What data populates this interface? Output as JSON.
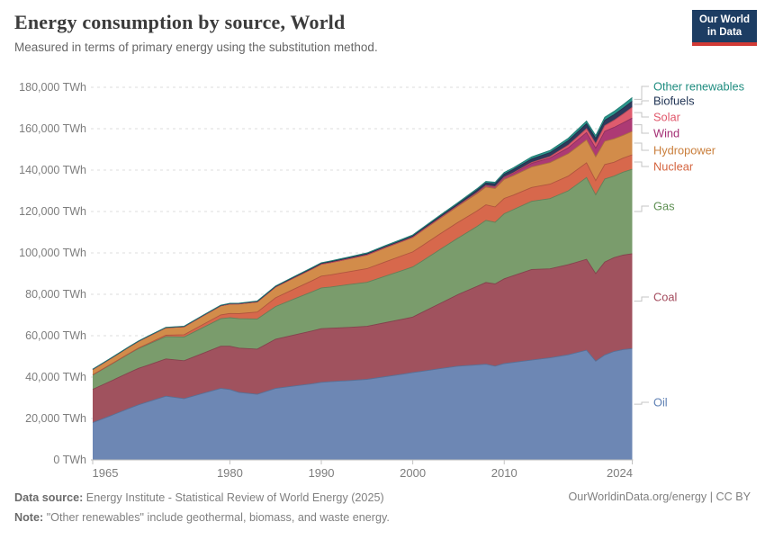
{
  "header": {
    "title": "Energy consumption by source, World",
    "subtitle": "Measured in terms of primary energy using the substitution method.",
    "logo": {
      "line1": "Our World",
      "line2": "in Data",
      "bg_color": "#1d3d63",
      "bar_color": "#d23a35"
    }
  },
  "footer": {
    "source_label": "Data source:",
    "source_text": "Energy Institute - Statistical Review of World Energy (2025)",
    "note_label": "Note:",
    "note_text": "\"Other renewables\" include geothermal, biomass, and waste energy.",
    "link_text": "OurWorldinData.org/energy | CC BY"
  },
  "chart_data": {
    "type": "area",
    "stacked": true,
    "title": "Energy consumption by source, World",
    "subtitle": "Measured in terms of primary energy using the substitution method.",
    "unit": "TWh",
    "grid": true,
    "legend_position": "right",
    "xlim": [
      1965,
      2024
    ],
    "ylim": [
      0,
      180000
    ],
    "x_ticks": [
      {
        "v": 1965,
        "label": "1965"
      },
      {
        "v": 1980,
        "label": "1980"
      },
      {
        "v": 1990,
        "label": "1990"
      },
      {
        "v": 2000,
        "label": "2000"
      },
      {
        "v": 2010,
        "label": "2010"
      },
      {
        "v": 2024,
        "label": "2024"
      }
    ],
    "y_ticks": [
      {
        "v": 0,
        "label": "0 TWh"
      },
      {
        "v": 20000,
        "label": "20,000 TWh"
      },
      {
        "v": 40000,
        "label": "40,000 TWh"
      },
      {
        "v": 60000,
        "label": "60,000 TWh"
      },
      {
        "v": 80000,
        "label": "80,000 TWh"
      },
      {
        "v": 100000,
        "label": "100,000 TWh"
      },
      {
        "v": 120000,
        "label": "120,000 TWh"
      },
      {
        "v": 140000,
        "label": "140,000 TWh"
      },
      {
        "v": 160000,
        "label": "160,000 TWh"
      },
      {
        "v": 180000,
        "label": "180,000 TWh"
      }
    ],
    "x": [
      1965,
      1967,
      1969,
      1970,
      1971,
      1973,
      1975,
      1977,
      1979,
      1980,
      1981,
      1983,
      1985,
      1987,
      1989,
      1990,
      1991,
      1993,
      1995,
      1997,
      1999,
      2000,
      2001,
      2003,
      2005,
      2007,
      2008,
      2009,
      2010,
      2011,
      2013,
      2015,
      2017,
      2019,
      2020,
      2021,
      2022,
      2023,
      2024
    ],
    "series": [
      {
        "name": "Oil",
        "fill": "#6d87b4",
        "label_color": "#5e80b4",
        "legend_y": 447,
        "values": [
          18000,
          21400,
          24900,
          26600,
          28000,
          30800,
          29600,
          32100,
          34500,
          34000,
          32600,
          31700,
          34500,
          35700,
          36800,
          37500,
          37800,
          38300,
          38900,
          40200,
          41500,
          42200,
          42800,
          44100,
          45300,
          45900,
          46200,
          45300,
          46500,
          47100,
          48200,
          49300,
          50800,
          53000,
          47700,
          50700,
          52400,
          53300,
          53800
        ]
      },
      {
        "name": "Coal",
        "fill": "#a0525e",
        "label_color": "#a34a5c",
        "legend_y": 330,
        "values": [
          16100,
          16700,
          17300,
          17600,
          17700,
          18000,
          18300,
          19300,
          20400,
          20900,
          21400,
          21800,
          23800,
          24600,
          25500,
          25900,
          25800,
          25700,
          25600,
          26100,
          26600,
          26800,
          28400,
          31500,
          34700,
          37900,
          39500,
          39700,
          41000,
          41900,
          43800,
          43000,
          43500,
          43900,
          42300,
          44900,
          45300,
          45600,
          45800
        ]
      },
      {
        "name": "Gas",
        "fill": "#7a9c6c",
        "label_color": "#5d8f52",
        "legend_y": 229,
        "values": [
          6900,
          8000,
          9100,
          9600,
          10000,
          10700,
          11500,
          12400,
          13300,
          13800,
          14200,
          14600,
          15800,
          17400,
          18900,
          19700,
          19900,
          20700,
          21300,
          22500,
          23600,
          24200,
          24800,
          26100,
          27300,
          28900,
          30000,
          29800,
          31400,
          31900,
          32900,
          33900,
          35700,
          39500,
          38100,
          40100,
          39400,
          40100,
          40800
        ]
      },
      {
        "name": "Nuclear",
        "fill": "#d7684c",
        "label_color": "#d4643f",
        "legend_y": 185,
        "values": [
          70,
          130,
          190,
          220,
          390,
          730,
          1060,
          1440,
          1830,
          2020,
          2460,
          3330,
          4200,
          4800,
          5400,
          5700,
          5900,
          6200,
          6600,
          6900,
          7200,
          7300,
          7400,
          7500,
          7600,
          7500,
          7500,
          7400,
          7400,
          7000,
          6700,
          7000,
          7100,
          7100,
          6800,
          7000,
          6700,
          6800,
          7000
        ]
      },
      {
        "name": "Hydropower",
        "fill": "#d28c4a",
        "label_color": "#c97e3b",
        "legend_y": 167,
        "values": [
          2600,
          2800,
          3100,
          3200,
          3400,
          3600,
          3900,
          4200,
          4400,
          4600,
          4700,
          4900,
          5200,
          5400,
          5600,
          5700,
          5900,
          6200,
          6600,
          6800,
          6900,
          7000,
          7200,
          7500,
          7800,
          8300,
          8600,
          8900,
          9200,
          9400,
          9900,
          10400,
          10800,
          11100,
          11500,
          11200,
          11300,
          11000,
          11300
        ]
      },
      {
        "name": "Wind",
        "fill": "#ad3a74",
        "label_color": "#a42e74",
        "legend_y": 148,
        "values": [
          0,
          0,
          0,
          0,
          0,
          0,
          0,
          0,
          0,
          0,
          0,
          0,
          0,
          0,
          10,
          10,
          10,
          20,
          20,
          50,
          70,
          80,
          120,
          200,
          280,
          540,
          660,
          790,
          920,
          1180,
          1710,
          2240,
          2890,
          3540,
          4190,
          4870,
          5490,
          6040,
          6450
        ]
      },
      {
        "name": "Solar",
        "fill": "#df5c6e",
        "label_color": "#e0566a",
        "legend_y": 130,
        "values": [
          0,
          0,
          0,
          0,
          0,
          0,
          0,
          0,
          0,
          0,
          0,
          0,
          0,
          0,
          0,
          0,
          0,
          0,
          0,
          0,
          0,
          0,
          0,
          10,
          10,
          40,
          60,
          70,
          90,
          210,
          440,
          680,
          1260,
          1840,
          2200,
          2700,
          3450,
          4260,
          5210
        ]
      },
      {
        "name": "Biofuels",
        "fill": "#2d3a5c",
        "label_color": "#1d3152",
        "legend_y": 112,
        "values": [
          100,
          110,
          120,
          120,
          120,
          130,
          130,
          160,
          190,
          200,
          220,
          250,
          280,
          320,
          370,
          390,
          410,
          440,
          480,
          510,
          540,
          560,
          630,
          760,
          900,
          1160,
          1280,
          1410,
          1540,
          1610,
          1760,
          1900,
          2150,
          2390,
          2500,
          2600,
          2700,
          2800,
          2900
        ]
      },
      {
        "name": "Other renewables",
        "fill": "#2a968c",
        "label_color": "#1e8c7f",
        "legend_y": 96,
        "values": [
          60,
          70,
          90,
          90,
          90,
          100,
          110,
          130,
          140,
          150,
          170,
          210,
          250,
          300,
          360,
          380,
          400,
          440,
          480,
          510,
          540,
          560,
          580,
          610,
          650,
          710,
          740,
          770,
          800,
          850,
          960,
          1060,
          1200,
          1340,
          1400,
          1500,
          1600,
          1700,
          1800
        ]
      }
    ]
  }
}
